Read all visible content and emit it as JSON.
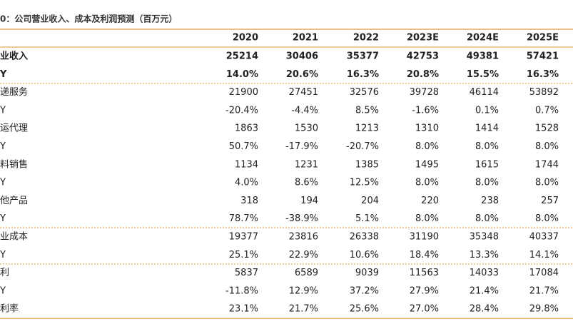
{
  "header": {
    "title": "0：公司营业收入、成本及利润预测（百万元）"
  },
  "table": {
    "columns": [
      "2020",
      "2021",
      "2022",
      "2023E",
      "2024E",
      "2025E"
    ],
    "rows": [
      [
        "业收入",
        "25214",
        "30406",
        "35377",
        "42753",
        "49381",
        "57421"
      ],
      [
        "Y",
        "14.0%",
        "20.6%",
        "16.3%",
        "20.8%",
        "15.5%",
        "16.3%"
      ],
      [
        "递服务",
        "21900",
        "27451",
        "32576",
        "39728",
        "46114",
        "53892"
      ],
      [
        "Y",
        "-20.4%",
        "-4.4%",
        "8.5%",
        "-1.6%",
        "0.1%",
        "0.7%"
      ],
      [
        "运代理",
        "1863",
        "1530",
        "1213",
        "1310",
        "1414",
        "1528"
      ],
      [
        "Y",
        "50.7%",
        "-17.9%",
        "-20.7%",
        "8.0%",
        "8.0%",
        "8.0%"
      ],
      [
        "料销售",
        "1134",
        "1231",
        "1385",
        "1495",
        "1615",
        "1744"
      ],
      [
        "Y",
        "4.0%",
        "8.6%",
        "12.5%",
        "8.0%",
        "8.0%",
        "8.0%"
      ],
      [
        "他产品",
        "318",
        "194",
        "204",
        "220",
        "238",
        "257"
      ],
      [
        "Y",
        "78.7%",
        "-38.9%",
        "5.1%",
        "8.0%",
        "8.0%",
        "8.0%"
      ],
      [
        "业成本",
        "19377",
        "23816",
        "26338",
        "31190",
        "35348",
        "40337"
      ],
      [
        "Y",
        "25.1%",
        "22.9%",
        "10.6%",
        "18.4%",
        "13.3%",
        "14.1%"
      ],
      [
        "利",
        "5837",
        "6589",
        "9039",
        "11563",
        "14033",
        "17084"
      ],
      [
        "Y",
        "-11.8%",
        "12.9%",
        "37.2%",
        "27.9%",
        "21.4%",
        "21.7%"
      ],
      [
        "利率",
        "23.1%",
        "21.7%",
        "25.6%",
        "27.0%",
        "28.4%",
        "29.8%"
      ]
    ]
  }
}
